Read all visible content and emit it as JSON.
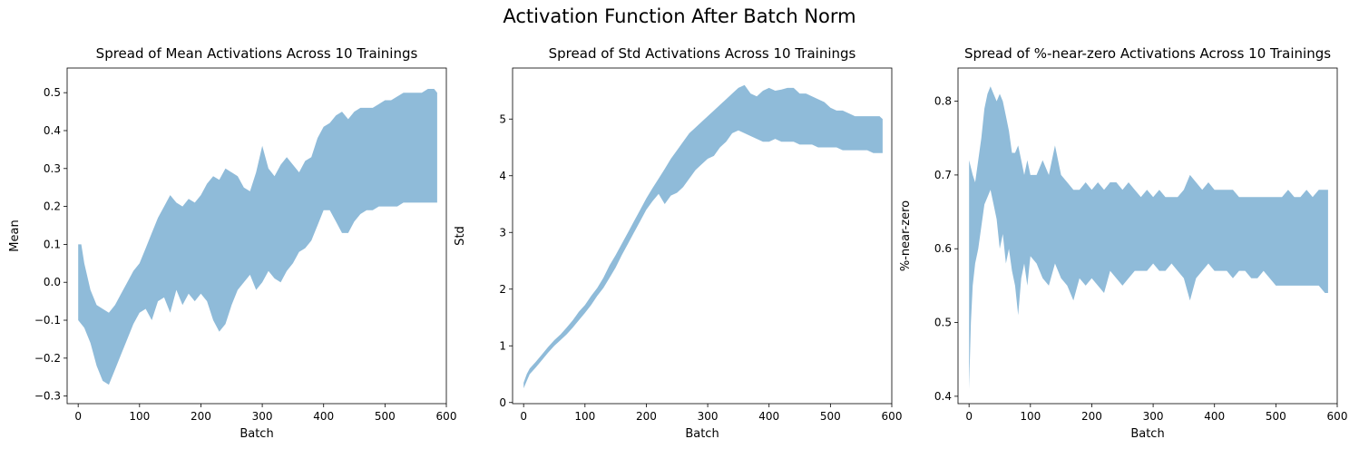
{
  "suptitle": "Activation Function After Batch Norm",
  "colors": {
    "fill": "#1f77b4",
    "fill_opacity": 0.5,
    "axis": "#000000"
  },
  "chart_data": [
    {
      "type": "area",
      "title": "Spread of Mean Activations Across 10 Trainings",
      "xlabel": "Batch",
      "ylabel": "Mean",
      "xlim": [
        -18,
        600
      ],
      "ylim": [
        -0.32,
        0.565
      ],
      "xticks": [
        0,
        100,
        200,
        300,
        400,
        500,
        600
      ],
      "yticks": [
        -0.3,
        -0.2,
        -0.1,
        0.0,
        0.1,
        0.2,
        0.3,
        0.4,
        0.5
      ],
      "ytick_labels": [
        "−0.3",
        "−0.2",
        "−0.1",
        "0.0",
        "0.1",
        "0.2",
        "0.3",
        "0.4",
        "0.5"
      ],
      "grid": false,
      "series": [
        {
          "x": [
            0,
            5,
            10,
            20,
            30,
            40,
            50,
            60,
            70,
            80,
            90,
            100,
            110,
            120,
            130,
            140,
            150,
            160,
            170,
            180,
            190,
            200,
            210,
            220,
            230,
            240,
            250,
            260,
            270,
            280,
            290,
            300,
            310,
            320,
            330,
            340,
            350,
            360,
            370,
            380,
            390,
            400,
            410,
            420,
            430,
            440,
            450,
            460,
            470,
            480,
            490,
            500,
            510,
            520,
            530,
            540,
            550,
            560,
            570,
            580,
            585
          ],
          "upper": [
            0.1,
            0.1,
            0.05,
            -0.02,
            -0.06,
            -0.07,
            -0.08,
            -0.06,
            -0.03,
            0.0,
            0.03,
            0.05,
            0.09,
            0.13,
            0.17,
            0.2,
            0.23,
            0.21,
            0.2,
            0.22,
            0.21,
            0.23,
            0.26,
            0.28,
            0.27,
            0.3,
            0.29,
            0.28,
            0.25,
            0.24,
            0.29,
            0.36,
            0.3,
            0.28,
            0.31,
            0.33,
            0.31,
            0.29,
            0.32,
            0.33,
            0.38,
            0.41,
            0.42,
            0.44,
            0.45,
            0.43,
            0.45,
            0.46,
            0.46,
            0.46,
            0.47,
            0.48,
            0.48,
            0.49,
            0.5,
            0.5,
            0.5,
            0.5,
            0.51,
            0.51,
            0.5
          ],
          "lower": [
            -0.1,
            -0.11,
            -0.12,
            -0.16,
            -0.22,
            -0.26,
            -0.27,
            -0.23,
            -0.19,
            -0.15,
            -0.11,
            -0.08,
            -0.07,
            -0.1,
            -0.05,
            -0.04,
            -0.08,
            -0.02,
            -0.06,
            -0.03,
            -0.05,
            -0.03,
            -0.05,
            -0.1,
            -0.13,
            -0.11,
            -0.06,
            -0.02,
            0.0,
            0.02,
            -0.02,
            0.0,
            0.03,
            0.01,
            0.0,
            0.03,
            0.05,
            0.08,
            0.09,
            0.11,
            0.15,
            0.19,
            0.19,
            0.16,
            0.13,
            0.13,
            0.16,
            0.18,
            0.19,
            0.19,
            0.2,
            0.2,
            0.2,
            0.2,
            0.21,
            0.21,
            0.21,
            0.21,
            0.21,
            0.21,
            0.21
          ]
        }
      ]
    },
    {
      "type": "area",
      "title": "Spread of Std Activations Across 10 Trainings",
      "xlabel": "Batch",
      "ylabel": "Std",
      "xlim": [
        -18,
        600
      ],
      "ylim": [
        -0.02,
        5.9
      ],
      "xticks": [
        0,
        100,
        200,
        300,
        400,
        500,
        600
      ],
      "yticks": [
        0,
        1,
        2,
        3,
        4,
        5
      ],
      "ytick_labels": [
        "0",
        "1",
        "2",
        "3",
        "4",
        "5"
      ],
      "grid": false,
      "series": [
        {
          "x": [
            0,
            5,
            10,
            20,
            30,
            40,
            50,
            60,
            70,
            80,
            90,
            100,
            110,
            120,
            130,
            140,
            150,
            160,
            170,
            180,
            190,
            200,
            210,
            220,
            230,
            240,
            250,
            260,
            270,
            280,
            290,
            300,
            310,
            320,
            330,
            340,
            350,
            360,
            370,
            380,
            390,
            400,
            410,
            420,
            430,
            440,
            450,
            460,
            470,
            480,
            490,
            500,
            510,
            520,
            530,
            540,
            550,
            560,
            570,
            580,
            585
          ],
          "upper": [
            0.35,
            0.5,
            0.6,
            0.72,
            0.85,
            0.98,
            1.1,
            1.2,
            1.32,
            1.45,
            1.6,
            1.72,
            1.88,
            2.02,
            2.2,
            2.42,
            2.6,
            2.8,
            3.0,
            3.2,
            3.4,
            3.6,
            3.78,
            3.95,
            4.12,
            4.3,
            4.45,
            4.6,
            4.75,
            4.85,
            4.95,
            5.05,
            5.15,
            5.25,
            5.35,
            5.45,
            5.55,
            5.6,
            5.45,
            5.4,
            5.5,
            5.55,
            5.5,
            5.52,
            5.55,
            5.55,
            5.45,
            5.45,
            5.4,
            5.35,
            5.3,
            5.2,
            5.15,
            5.15,
            5.1,
            5.05,
            5.05,
            5.05,
            5.05,
            5.05,
            5.0
          ],
          "lower": [
            0.25,
            0.38,
            0.5,
            0.62,
            0.75,
            0.88,
            1.0,
            1.1,
            1.2,
            1.32,
            1.45,
            1.58,
            1.72,
            1.88,
            2.02,
            2.2,
            2.38,
            2.6,
            2.8,
            3.0,
            3.2,
            3.4,
            3.55,
            3.68,
            3.5,
            3.65,
            3.7,
            3.8,
            3.95,
            4.1,
            4.2,
            4.3,
            4.35,
            4.5,
            4.6,
            4.75,
            4.8,
            4.75,
            4.7,
            4.65,
            4.6,
            4.6,
            4.65,
            4.6,
            4.6,
            4.6,
            4.55,
            4.55,
            4.55,
            4.5,
            4.5,
            4.5,
            4.5,
            4.45,
            4.45,
            4.45,
            4.45,
            4.45,
            4.4,
            4.4,
            4.4
          ]
        }
      ]
    },
    {
      "type": "area",
      "title": "Spread of %-near-zero Activations Across 10 Trainings",
      "xlabel": "Batch",
      "ylabel": "%-near-zero",
      "xlim": [
        -18,
        600
      ],
      "ylim": [
        0.39,
        0.845
      ],
      "xticks": [
        0,
        100,
        200,
        300,
        400,
        500,
        600
      ],
      "yticks": [
        0.4,
        0.5,
        0.6,
        0.7,
        0.8
      ],
      "ytick_labels": [
        "0.4",
        "0.5",
        "0.6",
        "0.7",
        "0.8"
      ],
      "grid": false,
      "series": [
        {
          "x": [
            0,
            3,
            6,
            10,
            15,
            20,
            25,
            30,
            35,
            40,
            45,
            50,
            55,
            60,
            65,
            70,
            75,
            80,
            85,
            90,
            95,
            100,
            110,
            120,
            130,
            140,
            150,
            160,
            170,
            180,
            190,
            200,
            210,
            220,
            230,
            240,
            250,
            260,
            270,
            280,
            290,
            300,
            310,
            320,
            330,
            340,
            350,
            360,
            370,
            380,
            390,
            400,
            410,
            420,
            430,
            440,
            450,
            460,
            470,
            480,
            490,
            500,
            510,
            520,
            530,
            540,
            550,
            560,
            570,
            580,
            585
          ],
          "upper": [
            0.72,
            0.71,
            0.7,
            0.69,
            0.72,
            0.75,
            0.79,
            0.81,
            0.82,
            0.81,
            0.8,
            0.81,
            0.8,
            0.78,
            0.76,
            0.73,
            0.73,
            0.74,
            0.72,
            0.7,
            0.72,
            0.7,
            0.7,
            0.72,
            0.7,
            0.74,
            0.7,
            0.69,
            0.68,
            0.68,
            0.69,
            0.68,
            0.69,
            0.68,
            0.69,
            0.69,
            0.68,
            0.69,
            0.68,
            0.67,
            0.68,
            0.67,
            0.68,
            0.67,
            0.67,
            0.67,
            0.68,
            0.7,
            0.69,
            0.68,
            0.69,
            0.68,
            0.68,
            0.68,
            0.68,
            0.67,
            0.67,
            0.67,
            0.67,
            0.67,
            0.67,
            0.67,
            0.67,
            0.68,
            0.67,
            0.67,
            0.68,
            0.67,
            0.68,
            0.68,
            0.68
          ],
          "lower": [
            0.41,
            0.5,
            0.55,
            0.58,
            0.6,
            0.63,
            0.66,
            0.67,
            0.68,
            0.66,
            0.64,
            0.6,
            0.62,
            0.58,
            0.6,
            0.57,
            0.55,
            0.51,
            0.56,
            0.58,
            0.55,
            0.59,
            0.58,
            0.56,
            0.55,
            0.58,
            0.56,
            0.55,
            0.53,
            0.56,
            0.55,
            0.56,
            0.55,
            0.54,
            0.57,
            0.56,
            0.55,
            0.56,
            0.57,
            0.57,
            0.57,
            0.58,
            0.57,
            0.57,
            0.58,
            0.57,
            0.56,
            0.53,
            0.56,
            0.57,
            0.58,
            0.57,
            0.57,
            0.57,
            0.56,
            0.57,
            0.57,
            0.56,
            0.56,
            0.57,
            0.56,
            0.55,
            0.55,
            0.55,
            0.55,
            0.55,
            0.55,
            0.55,
            0.55,
            0.54,
            0.54
          ]
        }
      ]
    }
  ]
}
